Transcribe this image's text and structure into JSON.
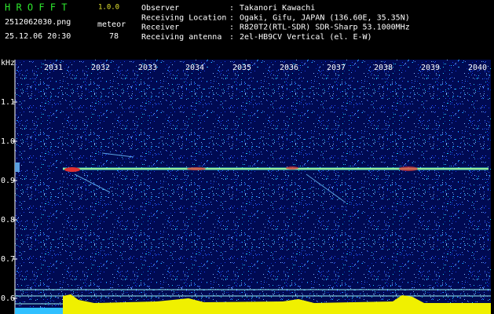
{
  "header": {
    "app": "H R O F F T",
    "version": "1.0.0",
    "file": "2512062030.png",
    "datetime": "25.12.06 20:30",
    "count_label": "meteor",
    "count": "78",
    "separator": ":",
    "fields": [
      {
        "label": "Observer",
        "value": "Takanori Kawachi"
      },
      {
        "label": "Receiving Location",
        "value": "Ogaki, Gifu, JAPAN (136.60E, 35.35N)"
      },
      {
        "label": "Receiver",
        "value": "R820T2(RTL-SDR) SDR-Sharp 53.1000MHz"
      },
      {
        "label": "Receiving antenna",
        "value": "2el-HB9CV Vertical (el. E-W)"
      }
    ]
  },
  "axes": {
    "unit": "kHz",
    "minutes": [
      "2031",
      "2032",
      "2033",
      "2034",
      "2035",
      "2036",
      "2037",
      "2038",
      "2039",
      "2040"
    ],
    "frequencies": [
      "1.1",
      "1.0",
      "0.9",
      "0.8",
      "0.7",
      "0.6"
    ]
  }
}
